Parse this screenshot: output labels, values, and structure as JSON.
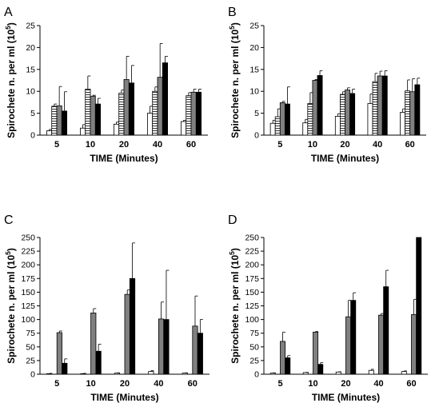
{
  "figure": {
    "background": "#ffffff"
  },
  "fills": {
    "white": "#ffffff",
    "hatched": "hatch",
    "gray": "#808080",
    "black": "#000000"
  },
  "chart_data": [
    {
      "panel": "A",
      "type": "bar",
      "categories": [
        "5",
        "10",
        "20",
        "40",
        "60"
      ],
      "xlabel": "TIME (Minutes)",
      "ylabel": "Spirochete n. per ml (10^5)",
      "ylabel_base": "Spirochete n. per ml (10",
      "ylabel_exp": "5",
      "ylabel_close": ")",
      "ylim": [
        0,
        25
      ],
      "yticks": [
        0,
        5,
        10,
        15,
        20,
        25
      ],
      "grid": false,
      "series": [
        {
          "fill": "white",
          "values": [
            1.0,
            1.6,
            2.5,
            5.0,
            3.1
          ],
          "errors": [
            0.3,
            0.8,
            0.5,
            1.6,
            0.3
          ]
        },
        {
          "fill": "hatched",
          "values": [
            6.6,
            10.5,
            9.6,
            10.0,
            9.0
          ],
          "errors": [
            0.5,
            3.0,
            0.7,
            1.0,
            0.7
          ]
        },
        {
          "fill": "gray",
          "values": [
            6.7,
            8.9,
            12.7,
            13.2,
            9.8
          ],
          "errors": [
            4.4,
            0.2,
            5.3,
            7.7,
            0.7
          ]
        },
        {
          "fill": "black",
          "values": [
            5.5,
            7.1,
            11.9,
            16.5,
            9.8
          ],
          "errors": [
            4.4,
            1.3,
            4.0,
            1.5,
            0.7
          ]
        }
      ]
    },
    {
      "panel": "B",
      "type": "bar",
      "categories": [
        "5",
        "10",
        "20",
        "40",
        "60"
      ],
      "xlabel": "TIME (Minutes)",
      "ylabel": "Spirochete n. per ml (10^5)",
      "ylabel_base": "Spirochete n. per ml (10",
      "ylabel_exp": "5",
      "ylabel_close": ")",
      "ylim": [
        0,
        25
      ],
      "yticks": [
        0,
        5,
        10,
        15,
        20,
        25
      ],
      "grid": false,
      "series": [
        {
          "fill": "white",
          "values": [
            2.7,
            2.8,
            4.3,
            7.2,
            5.2
          ],
          "errors": [
            0.7,
            0.8,
            0.6,
            2.2,
            0.8
          ]
        },
        {
          "fill": "hatched",
          "values": [
            4.2,
            7.2,
            9.3,
            12.2,
            10.1
          ],
          "errors": [
            1.8,
            2.5,
            0.6,
            1.9,
            2.5
          ]
        },
        {
          "fill": "gray",
          "values": [
            7.4,
            12.5,
            10.3,
            13.5,
            9.9
          ],
          "errors": [
            0.3,
            0.2,
            0.5,
            1.1,
            3.0
          ]
        },
        {
          "fill": "black",
          "values": [
            7.1,
            13.6,
            9.5,
            13.5,
            11.5
          ],
          "errors": [
            3.9,
            1.1,
            1.0,
            1.2,
            1.5
          ]
        }
      ]
    },
    {
      "panel": "C",
      "type": "bar",
      "categories": [
        "5",
        "10",
        "20",
        "40",
        "60"
      ],
      "xlabel": "TIME (Minutes)",
      "ylabel": "Spirochete n. per ml (10^5)",
      "ylabel_base": "Spirochete n. per ml (10",
      "ylabel_exp": "5",
      "ylabel_close": ")",
      "ylim": [
        0,
        250
      ],
      "yticks": [
        0,
        25,
        50,
        75,
        100,
        125,
        150,
        175,
        200,
        225,
        250
      ],
      "grid": false,
      "series": [
        {
          "fill": "white",
          "values": [
            1,
            1,
            2,
            5,
            2
          ],
          "errors": [
            0.5,
            0.5,
            0.5,
            1.5,
            0.5
          ]
        },
        {
          "fill": "hatched",
          "values": [
            0,
            0,
            0,
            0,
            0
          ],
          "errors": [
            0,
            0,
            0,
            0,
            0
          ]
        },
        {
          "fill": "gray",
          "values": [
            76,
            112,
            146,
            101,
            88
          ],
          "errors": [
            3,
            8,
            8,
            31,
            55
          ]
        },
        {
          "fill": "black",
          "values": [
            20,
            42,
            175,
            100,
            75
          ],
          "errors": [
            8,
            13,
            65,
            90,
            25
          ]
        }
      ]
    },
    {
      "panel": "D",
      "type": "bar",
      "categories": [
        "5",
        "10",
        "20",
        "40",
        "60"
      ],
      "xlabel": "TIME (Minutes)",
      "ylabel": "Spirochete n. per ml (10^5)",
      "ylabel_base": "Spirochete n. per ml (10",
      "ylabel_exp": "5",
      "ylabel_close": ")",
      "ylim": [
        0,
        250
      ],
      "yticks": [
        0,
        25,
        50,
        75,
        100,
        125,
        150,
        175,
        200,
        225,
        250
      ],
      "grid": false,
      "series": [
        {
          "fill": "white",
          "values": [
            2,
            3,
            4,
            7,
            5
          ],
          "errors": [
            0.5,
            0.5,
            0.5,
            2,
            1
          ]
        },
        {
          "fill": "hatched",
          "values": [
            0,
            0,
            0,
            0,
            0
          ],
          "errors": [
            0,
            0,
            0,
            0,
            0
          ]
        },
        {
          "fill": "gray",
          "values": [
            60,
            77,
            105,
            108,
            109
          ],
          "errors": [
            17,
            1,
            30,
            3,
            28
          ]
        },
        {
          "fill": "black",
          "values": [
            30,
            18,
            135,
            160,
            250
          ],
          "errors": [
            4,
            3,
            14,
            30,
            0
          ]
        }
      ]
    }
  ]
}
